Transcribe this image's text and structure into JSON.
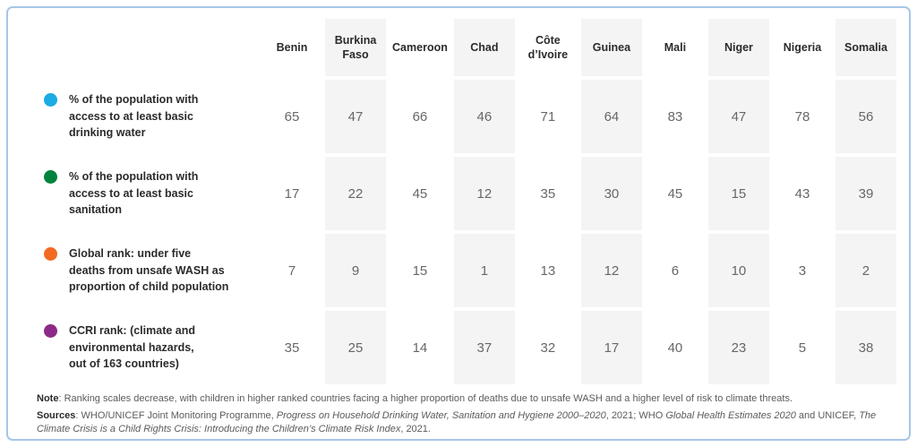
{
  "table": {
    "columns": [
      "Benin",
      "Burkina Faso",
      "Cameroon",
      "Chad",
      "Côte d’Ivoire",
      "Guinea",
      "Mali",
      "Niger",
      "Nigeria",
      "Somalia"
    ],
    "shaded_columns": [
      1,
      3,
      5,
      7,
      9
    ],
    "rows": [
      {
        "label": "% of the population with\naccess to at least basic\ndrinking water",
        "dot_color": "#1cabe2",
        "dot_name": "blue-dot",
        "values": [
          "65",
          "47",
          "66",
          "46",
          "71",
          "64",
          "83",
          "47",
          "78",
          "56"
        ]
      },
      {
        "label": "% of the population with\naccess to at least basic\nsanitation",
        "dot_color": "#00833d",
        "dot_name": "green-dot",
        "values": [
          "17",
          "22",
          "45",
          "12",
          "35",
          "30",
          "45",
          "15",
          "43",
          "39"
        ]
      },
      {
        "label": "Global rank: under five\ndeaths from unsafe WASH as\nproportion of child population",
        "dot_color": "#f26a21",
        "dot_name": "orange-dot",
        "values": [
          "7",
          "9",
          "15",
          "1",
          "13",
          "12",
          "6",
          "10",
          "3",
          "2"
        ]
      },
      {
        "label": "CCRI rank: (climate and\nenvironmental hazards,\nout of 163 countries)",
        "dot_color": "#8c2b87",
        "dot_name": "purple-dot",
        "values": [
          "35",
          "25",
          "14",
          "37",
          "32",
          "17",
          "40",
          "23",
          "5",
          "38"
        ]
      }
    ]
  },
  "footnotes": {
    "note_label": "Note",
    "note_text": ": Ranking scales decrease, with children in higher ranked countries facing a higher proportion of deaths due to unsafe WASH and a higher level of risk to climate threats.",
    "sources_label": "Sources",
    "sources_segments": [
      {
        "text": ": WHO/UNICEF Joint Monitoring Programme, ",
        "italic": false
      },
      {
        "text": "Progress on Household Drinking Water, Sanitation and Hygiene 2000–2020",
        "italic": true
      },
      {
        "text": ", 2021; WHO ",
        "italic": false
      },
      {
        "text": "Global Health Estimates 2020",
        "italic": true
      },
      {
        "text": " and UNICEF, ",
        "italic": false
      },
      {
        "text": "The Climate Crisis is a Child Rights Crisis: Introducing the Children’s Climate Risk Index",
        "italic": true
      },
      {
        "text": ", 2021.",
        "italic": false
      }
    ]
  },
  "colors": {
    "card_border": "#a6c6e8",
    "column_shading": "#f4f4f4",
    "header_text": "#2b2b2b",
    "value_text": "#66676a",
    "footnote_text": "#5a5b5d"
  }
}
